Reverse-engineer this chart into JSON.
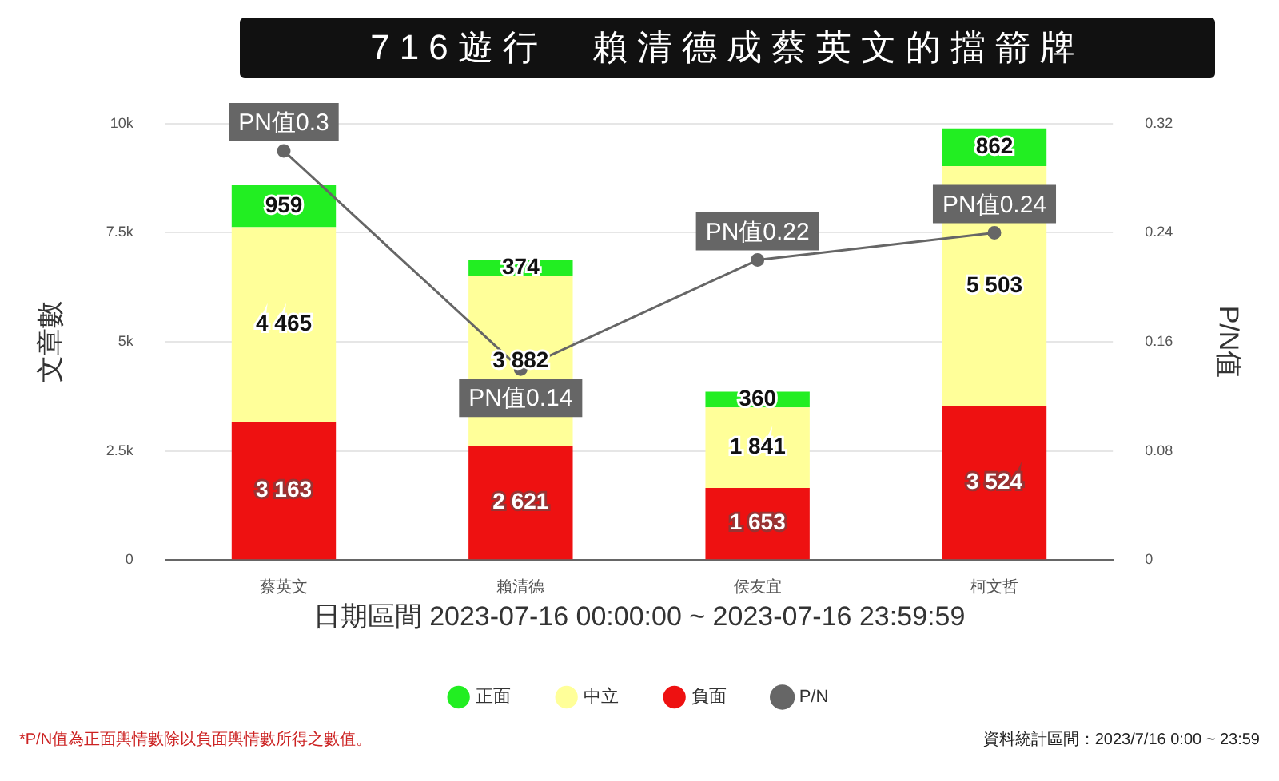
{
  "chart_data": {
    "type": "bar",
    "title": "716遊行　賴清德成蔡英文的擋箭牌",
    "categories": [
      "蔡英文",
      "賴清德",
      "侯友宜",
      "柯文哲"
    ],
    "series": [
      {
        "name": "負面",
        "color": "#ee1111",
        "values": [
          3163,
          2621,
          1653,
          3524
        ],
        "value_labels": [
          "3 163",
          "2 621",
          "1 653",
          "3 524"
        ]
      },
      {
        "name": "中立",
        "color": "#ffff99",
        "values": [
          4465,
          3882,
          1841,
          5503
        ],
        "value_labels": [
          "4 465",
          "3 882",
          "1 841",
          "5 503"
        ]
      },
      {
        "name": "正面",
        "color": "#22ee22",
        "values": [
          959,
          374,
          360,
          862
        ],
        "value_labels": [
          "959",
          "374",
          "360",
          "862"
        ]
      },
      {
        "name": "P/N",
        "type": "line",
        "axis": "y2",
        "color": "#666666",
        "values": [
          0.3,
          0.14,
          0.22,
          0.24
        ],
        "value_labels": [
          "PN值0.3",
          "PN值0.14",
          "PN值0.22",
          "PN值0.24"
        ]
      }
    ],
    "stacked": true,
    "ylim": [
      0,
      10000
    ],
    "yticks": [
      0,
      {
        "value": 2500,
        "label": "2.5k"
      },
      {
        "value": 5000,
        "label": "5k"
      },
      {
        "value": 7500,
        "label": "7.5k"
      },
      {
        "value": 10000,
        "label": "10k"
      }
    ],
    "y2lim": [
      0,
      0.32
    ],
    "y2ticks": [
      0,
      0.08,
      0.16,
      0.24,
      0.32
    ],
    "ylabel": "文章數",
    "y2label": "P/N值",
    "xlabel": "日期區間 2023-07-16 00:00:00 ~ 2023-07-16 23:59:59",
    "grid": "y",
    "legend": "bottom",
    "marker": "circle",
    "annotations": [
      "*P/N值為正面輿情數除以負面輿情數所得之數值。",
      "資料統計區間：2023/7/16 0:00 ~ 23:59"
    ]
  }
}
